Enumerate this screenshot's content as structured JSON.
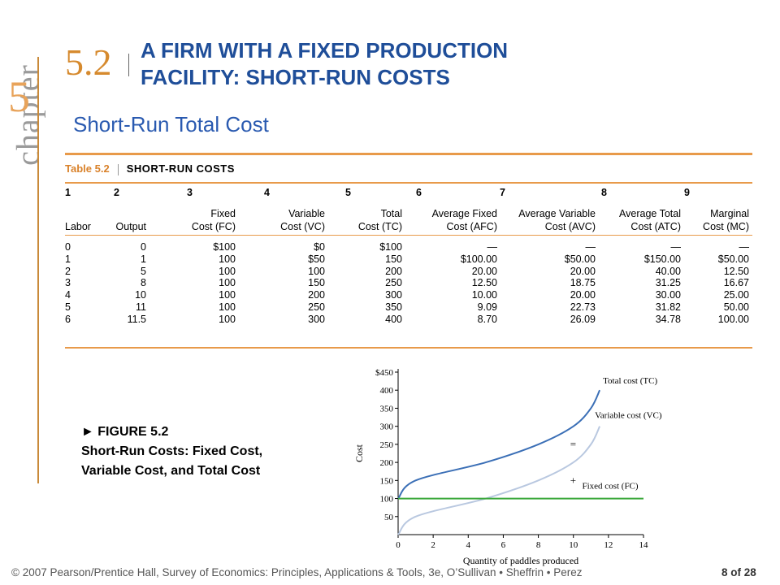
{
  "chapter": {
    "word": "chapter",
    "number": "5"
  },
  "section": {
    "number": "5.2",
    "title_line1": "A FIRM WITH A FIXED PRODUCTION",
    "title_line2": "FACILITY: SHORT-RUN COSTS"
  },
  "subtitle": "Short-Run Total Cost",
  "table": {
    "label": "Table 5.2",
    "name": "SHORT-RUN COSTS",
    "columns": [
      {
        "num": "1",
        "h1": "",
        "h2": "Labor",
        "cells": [
          "0",
          "1",
          "2",
          "3",
          "4",
          "5",
          "6"
        ]
      },
      {
        "num": "2",
        "h1": "",
        "h2": "Output",
        "cells": [
          "0",
          "1",
          "5",
          "8",
          "10",
          "11",
          "11.5"
        ]
      },
      {
        "num": "3",
        "h1": "Fixed",
        "h2": "Cost (FC)",
        "cells": [
          "$100",
          "100",
          "100",
          "100",
          "100",
          "100",
          "100"
        ]
      },
      {
        "num": "4",
        "h1": "Variable",
        "h2": "Cost (VC)",
        "cells": [
          "$0",
          "$50",
          "100",
          "150",
          "200",
          "250",
          "300"
        ]
      },
      {
        "num": "5",
        "h1": "Total",
        "h2": "Cost (TC)",
        "cells": [
          "$100",
          "150",
          "200",
          "250",
          "300",
          "350",
          "400"
        ]
      },
      {
        "num": "6",
        "h1": "Average Fixed",
        "h2": "Cost (AFC)",
        "cells": [
          "—",
          "$100.00",
          "20.00",
          "12.50",
          "10.00",
          "9.09",
          "8.70"
        ]
      },
      {
        "num": "7",
        "h1": "Average Variable",
        "h2": "Cost (AVC)",
        "cells": [
          "—",
          "$50.00",
          "20.00",
          "18.75",
          "20.00",
          "22.73",
          "26.09"
        ]
      },
      {
        "num": "8",
        "h1": "Average Total",
        "h2": "Cost (ATC)",
        "cells": [
          "—",
          "$150.00",
          "40.00",
          "31.25",
          "30.00",
          "31.82",
          "34.78"
        ]
      },
      {
        "num": "9",
        "h1": "Marginal",
        "h2": "Cost (MC)",
        "cells": [
          "—",
          "$50.00",
          "12.50",
          "16.67",
          "25.00",
          "50.00",
          "100.00"
        ]
      }
    ]
  },
  "figure": {
    "caption_line1": "► FIGURE 5.2",
    "caption_line2": "Short-Run Costs: Fixed Cost,",
    "caption_line3": "Variable Cost, and Total Cost"
  },
  "chart_data": {
    "type": "line",
    "xlabel": "Quantity of paddles produced",
    "ylabel": "Cost",
    "xlim": [
      0,
      14
    ],
    "ylim": [
      0,
      450
    ],
    "x_ticks": [
      "0",
      "2",
      "4",
      "6",
      "8",
      "10",
      "12",
      "14"
    ],
    "y_ticks": [
      "50",
      "100",
      "150",
      "200",
      "250",
      "300",
      "350",
      "400",
      "$450"
    ],
    "series": [
      {
        "name": "Total cost (TC)",
        "x": [
          0,
          1,
          5,
          8,
          10,
          11,
          11.5
        ],
        "y": [
          100,
          150,
          200,
          250,
          300,
          350,
          400
        ],
        "color": "#3b6fb6"
      },
      {
        "name": "Variable cost (VC)",
        "x": [
          0,
          1,
          5,
          8,
          10,
          11,
          11.5
        ],
        "y": [
          0,
          50,
          100,
          150,
          200,
          250,
          300
        ],
        "color": "#b9c8e0"
      },
      {
        "name": "Fixed cost (FC)",
        "x": [
          0,
          14
        ],
        "y": [
          100,
          100
        ],
        "color": "#3aa83a"
      }
    ],
    "annotations": [
      "=",
      "+"
    ]
  },
  "footer": "© 2007 Pearson/Prentice Hall, Survey of Economics: Principles, Applications & Tools, 3e, O’Sullivan • Sheffrin • Perez",
  "page": "8 of 28"
}
